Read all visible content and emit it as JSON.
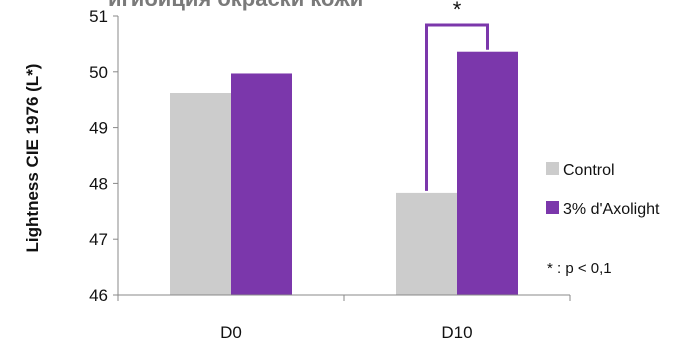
{
  "chart_data": {
    "type": "bar",
    "title": "игибиция окраски кожи",
    "ylabel": "Lightness CIE 1976 (L*)",
    "xlabel": "",
    "categories": [
      "D0",
      "D10"
    ],
    "ylim": [
      46,
      51
    ],
    "yticks": [
      46,
      47,
      48,
      49,
      50,
      51
    ],
    "grid": false,
    "legend_position": "right",
    "series": [
      {
        "name": "Control",
        "color": "#cccccc",
        "values": [
          49.62,
          47.83
        ]
      },
      {
        "name": "3% d'Axolight",
        "color": "#7b37ab",
        "values": [
          49.97,
          50.36
        ]
      }
    ],
    "significance": {
      "marker": "*",
      "category": "D10",
      "bracket_color": "#7b37ab"
    },
    "note": "* :  p < 0,1"
  }
}
